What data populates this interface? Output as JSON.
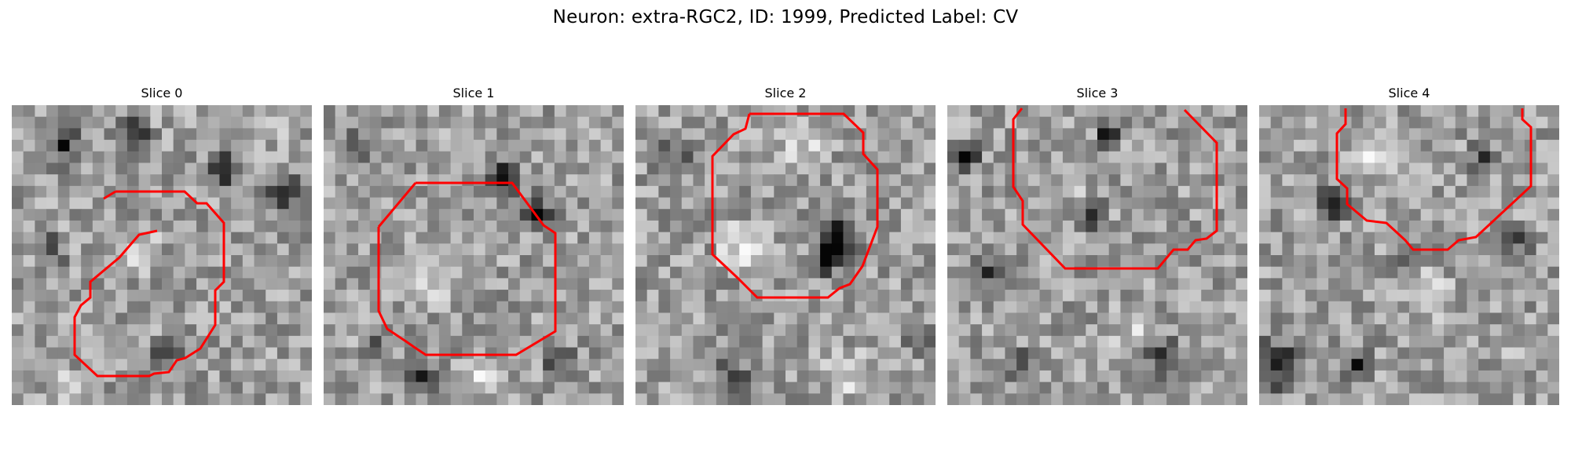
{
  "figure": {
    "suptitle": "Neuron: extra-RGC2, ID: 1999, Predicted Label: CV"
  },
  "panels": [
    {
      "title": "Slice 0"
    },
    {
      "title": "Slice 1"
    },
    {
      "title": "Slice 2"
    },
    {
      "title": "Slice 3"
    },
    {
      "title": "Slice 4"
    }
  ],
  "colors": {
    "contour": "#ff0000",
    "background": "#ffffff"
  }
}
